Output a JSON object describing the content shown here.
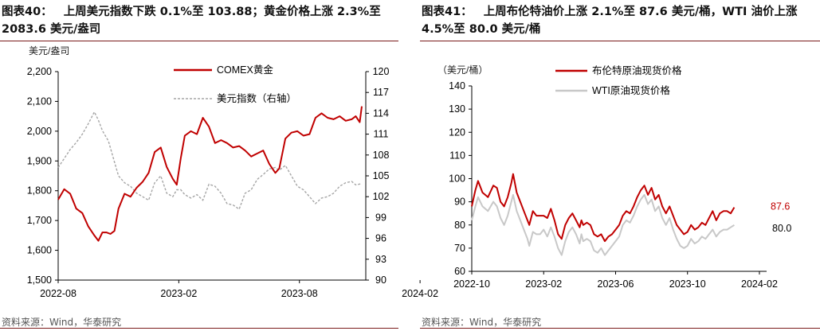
{
  "panels": [
    {
      "title_label": "图表40：",
      "title_text_1": "上周美元指数下跌 0.1%至 103.88；黄金价格上涨 2.3%至",
      "title_text_2": "2083.6 美元/盎司",
      "source": "资料来源：Wind，华泰研究"
    },
    {
      "title_label": "图表41：",
      "title_text_1": "上周布伦特油价上涨 2.1%至 87.6 美元/桶，WTI 油价上涨",
      "title_text_2": "4.5%至 80.0 美元/桶",
      "source": "资料来源：Wind，华泰研究"
    }
  ],
  "chart_data": [
    {
      "type": "line",
      "unit_label": "美元/盎司",
      "x_ticks": [
        "2022-08",
        "2023-02",
        "2023-08",
        "2024-02"
      ],
      "x_range": [
        "2022-08",
        "2024-02"
      ],
      "y_left": {
        "ticks": [
          "1,500",
          "1,600",
          "1,700",
          "1,800",
          "1,900",
          "2,000",
          "2,100",
          "2,200"
        ],
        "range": [
          1500,
          2200
        ]
      },
      "y_right": {
        "ticks": [
          "90",
          "93",
          "96",
          "99",
          "102",
          "105",
          "108",
          "111",
          "114",
          "117",
          "120"
        ],
        "range": [
          90,
          120
        ]
      },
      "legend": [
        "COMEX黄金",
        "美元指数（右轴）"
      ],
      "colors": {
        "gold": "#c00000",
        "dxy": "#a6a6a6"
      },
      "series": [
        {
          "name": "COMEX黄金",
          "axis": "left",
          "values": [
            [
              0,
              1770
            ],
            [
              0.3,
              1805
            ],
            [
              0.6,
              1790
            ],
            [
              0.9,
              1740
            ],
            [
              1.2,
              1725
            ],
            [
              1.5,
              1680
            ],
            [
              1.8,
              1650
            ],
            [
              2.0,
              1632
            ],
            [
              2.2,
              1660
            ],
            [
              2.4,
              1660
            ],
            [
              2.6,
              1655
            ],
            [
              2.8,
              1665
            ],
            [
              3.0,
              1740
            ],
            [
              3.3,
              1790
            ],
            [
              3.6,
              1780
            ],
            [
              3.9,
              1810
            ],
            [
              4.2,
              1830
            ],
            [
              4.5,
              1860
            ],
            [
              4.8,
              1930
            ],
            [
              5.1,
              1945
            ],
            [
              5.4,
              1880
            ],
            [
              5.7,
              1840
            ],
            [
              5.9,
              1820
            ],
            [
              6.1,
              1910
            ],
            [
              6.3,
              1985
            ],
            [
              6.6,
              2000
            ],
            [
              6.9,
              1990
            ],
            [
              7.2,
              2045
            ],
            [
              7.5,
              2015
            ],
            [
              7.8,
              1960
            ],
            [
              8.1,
              1970
            ],
            [
              8.4,
              1960
            ],
            [
              8.7,
              1945
            ],
            [
              9.0,
              1950
            ],
            [
              9.3,
              1935
            ],
            [
              9.6,
              1915
            ],
            [
              9.9,
              1925
            ],
            [
              10.2,
              1935
            ],
            [
              10.5,
              1890
            ],
            [
              10.8,
              1860
            ],
            [
              11.0,
              1875
            ],
            [
              11.3,
              1975
            ],
            [
              11.6,
              1995
            ],
            [
              11.9,
              2000
            ],
            [
              12.2,
              1985
            ],
            [
              12.5,
              1990
            ],
            [
              12.8,
              2045
            ],
            [
              13.1,
              2060
            ],
            [
              13.4,
              2045
            ],
            [
              13.7,
              2040
            ],
            [
              14.0,
              2050
            ],
            [
              14.3,
              2035
            ],
            [
              14.6,
              2040
            ],
            [
              14.8,
              2050
            ],
            [
              15.0,
              2030
            ],
            [
              15.1,
              2083.6
            ]
          ]
        },
        {
          "name": "美元指数（右轴）",
          "axis": "right",
          "values": [
            [
              0,
              106.2
            ],
            [
              0.3,
              107.5
            ],
            [
              0.6,
              108.8
            ],
            [
              0.9,
              109.8
            ],
            [
              1.2,
              111.0
            ],
            [
              1.5,
              112.5
            ],
            [
              1.8,
              114.2
            ],
            [
              2.0,
              113.0
            ],
            [
              2.2,
              111.5
            ],
            [
              2.5,
              110.0
            ],
            [
              2.8,
              107.0
            ],
            [
              3.0,
              105.0
            ],
            [
              3.3,
              104.0
            ],
            [
              3.6,
              103.5
            ],
            [
              3.9,
              102.5
            ],
            [
              4.2,
              102.0
            ],
            [
              4.5,
              101.5
            ],
            [
              4.8,
              104.0
            ],
            [
              5.1,
              105.0
            ],
            [
              5.4,
              102.5
            ],
            [
              5.7,
              102.0
            ],
            [
              5.9,
              103.0
            ],
            [
              6.1,
              103.0
            ],
            [
              6.3,
              102.3
            ],
            [
              6.6,
              101.8
            ],
            [
              6.9,
              102.3
            ],
            [
              7.2,
              101.5
            ],
            [
              7.5,
              103.8
            ],
            [
              7.8,
              103.5
            ],
            [
              8.1,
              102.5
            ],
            [
              8.4,
              101.0
            ],
            [
              8.7,
              100.8
            ],
            [
              9.0,
              100.2
            ],
            [
              9.3,
              102.5
            ],
            [
              9.6,
              103.0
            ],
            [
              9.9,
              104.5
            ],
            [
              10.2,
              105.2
            ],
            [
              10.5,
              106.0
            ],
            [
              10.8,
              106.2
            ],
            [
              11.0,
              105.8
            ],
            [
              11.3,
              106.5
            ],
            [
              11.6,
              105.0
            ],
            [
              11.9,
              103.5
            ],
            [
              12.2,
              103.0
            ],
            [
              12.5,
              102.0
            ],
            [
              12.8,
              101.0
            ],
            [
              13.1,
              101.8
            ],
            [
              13.4,
              102.0
            ],
            [
              13.7,
              102.5
            ],
            [
              14.0,
              103.5
            ],
            [
              14.3,
              104.0
            ],
            [
              14.6,
              104.2
            ],
            [
              14.8,
              103.7
            ],
            [
              15.1,
              103.88
            ]
          ]
        }
      ]
    },
    {
      "type": "line",
      "unit_label": "（美元/桶）",
      "x_ticks": [
        "2022-10",
        "2023-02",
        "2023-06",
        "2023-10",
        "2024-02"
      ],
      "x_range": [
        "2022-10",
        "2024-02"
      ],
      "y": {
        "ticks": [
          "60",
          "70",
          "80",
          "90",
          "100",
          "110",
          "120",
          "130",
          "140"
        ],
        "range": [
          60,
          140
        ]
      },
      "legend": [
        "布伦特原油现货价格",
        "WTI原油现货价格"
      ],
      "colors": {
        "brent": "#c00000",
        "wti": "#c8c8c8"
      },
      "end_labels": {
        "brent": "87.6",
        "wti": "80.0"
      },
      "series": [
        {
          "name": "布伦特原油现货价格",
          "values": [
            [
              0,
              88
            ],
            [
              0.2,
              95
            ],
            [
              0.35,
              99
            ],
            [
              0.6,
              94
            ],
            [
              0.9,
              92
            ],
            [
              1.2,
              97
            ],
            [
              1.4,
              96
            ],
            [
              1.6,
              90
            ],
            [
              1.8,
              88
            ],
            [
              2.0,
              92
            ],
            [
              2.2,
              98
            ],
            [
              2.3,
              102
            ],
            [
              2.5,
              94
            ],
            [
              2.7,
              90
            ],
            [
              2.9,
              86
            ],
            [
              3.1,
              82
            ],
            [
              3.2,
              80
            ],
            [
              3.4,
              86
            ],
            [
              3.6,
              84
            ],
            [
              3.8,
              84
            ],
            [
              4.0,
              84
            ],
            [
              4.2,
              83
            ],
            [
              4.4,
              87
            ],
            [
              4.6,
              82
            ],
            [
              4.8,
              76
            ],
            [
              5.0,
              74
            ],
            [
              5.2,
              80
            ],
            [
              5.4,
              83
            ],
            [
              5.6,
              85
            ],
            [
              5.8,
              82
            ],
            [
              6.0,
              79
            ],
            [
              6.1,
              82
            ],
            [
              6.2,
              80
            ],
            [
              6.4,
              81
            ],
            [
              6.6,
              80
            ],
            [
              6.8,
              76
            ],
            [
              7.0,
              75
            ],
            [
              7.2,
              76
            ],
            [
              7.4,
              73
            ],
            [
              7.6,
              75
            ],
            [
              7.8,
              76
            ],
            [
              8.0,
              78
            ],
            [
              8.2,
              80
            ],
            [
              8.4,
              84
            ],
            [
              8.6,
              86
            ],
            [
              8.8,
              85
            ],
            [
              9.0,
              88
            ],
            [
              9.2,
              92
            ],
            [
              9.4,
              95
            ],
            [
              9.6,
              97
            ],
            [
              9.8,
              93
            ],
            [
              10.0,
              96
            ],
            [
              10.2,
              91
            ],
            [
              10.4,
              93
            ],
            [
              10.6,
              88
            ],
            [
              10.8,
              85
            ],
            [
              11.0,
              88
            ],
            [
              11.2,
              84
            ],
            [
              11.4,
              80
            ],
            [
              11.6,
              78
            ],
            [
              11.8,
              76
            ],
            [
              12.0,
              77
            ],
            [
              12.2,
              80
            ],
            [
              12.4,
              78
            ],
            [
              12.6,
              79
            ],
            [
              12.8,
              81
            ],
            [
              13.0,
              80
            ],
            [
              13.2,
              83
            ],
            [
              13.4,
              86
            ],
            [
              13.6,
              82
            ],
            [
              13.8,
              85
            ],
            [
              14.0,
              86
            ],
            [
              14.2,
              86
            ],
            [
              14.4,
              85
            ],
            [
              14.6,
              87.6
            ]
          ]
        },
        {
          "name": "WTI原油现货价格",
          "values": [
            [
              0,
              82
            ],
            [
              0.2,
              88
            ],
            [
              0.35,
              92
            ],
            [
              0.6,
              88
            ],
            [
              0.9,
              86
            ],
            [
              1.2,
              90
            ],
            [
              1.4,
              88
            ],
            [
              1.6,
              83
            ],
            [
              1.8,
              80
            ],
            [
              2.0,
              84
            ],
            [
              2.2,
              90
            ],
            [
              2.3,
              93
            ],
            [
              2.5,
              86
            ],
            [
              2.7,
              82
            ],
            [
              2.9,
              78
            ],
            [
              3.1,
              74
            ],
            [
              3.2,
              71
            ],
            [
              3.4,
              77
            ],
            [
              3.6,
              76
            ],
            [
              3.8,
              76
            ],
            [
              4.0,
              78
            ],
            [
              4.2,
              75
            ],
            [
              4.4,
              79
            ],
            [
              4.6,
              75
            ],
            [
              4.8,
              70
            ],
            [
              5.0,
              67
            ],
            [
              5.2,
              73
            ],
            [
              5.4,
              77
            ],
            [
              5.6,
              79
            ],
            [
              5.8,
              76
            ],
            [
              6.0,
              72
            ],
            [
              6.1,
              76
            ],
            [
              6.2,
              73
            ],
            [
              6.4,
              74
            ],
            [
              6.6,
              73
            ],
            [
              6.8,
              69
            ],
            [
              7.0,
              68
            ],
            [
              7.2,
              70
            ],
            [
              7.4,
              67
            ],
            [
              7.6,
              69
            ],
            [
              7.8,
              71
            ],
            [
              8.0,
              73
            ],
            [
              8.2,
              75
            ],
            [
              8.4,
              80
            ],
            [
              8.6,
              82
            ],
            [
              8.8,
              81
            ],
            [
              9.0,
              84
            ],
            [
              9.2,
              88
            ],
            [
              9.4,
              91
            ],
            [
              9.6,
              93
            ],
            [
              9.8,
              89
            ],
            [
              10.0,
              91
            ],
            [
              10.2,
              86
            ],
            [
              10.4,
              88
            ],
            [
              10.6,
              83
            ],
            [
              10.8,
              80
            ],
            [
              11.0,
              83
            ],
            [
              11.2,
              78
            ],
            [
              11.4,
              74
            ],
            [
              11.6,
              71
            ],
            [
              11.8,
              70
            ],
            [
              12.0,
              71
            ],
            [
              12.2,
              74
            ],
            [
              12.4,
              72
            ],
            [
              12.6,
              73
            ],
            [
              12.8,
              75
            ],
            [
              13.0,
              74
            ],
            [
              13.2,
              76
            ],
            [
              13.4,
              78
            ],
            [
              13.6,
              75
            ],
            [
              13.8,
              77
            ],
            [
              14.0,
              78
            ],
            [
              14.2,
              78
            ],
            [
              14.4,
              79
            ],
            [
              14.6,
              80.0
            ]
          ]
        }
      ]
    }
  ]
}
